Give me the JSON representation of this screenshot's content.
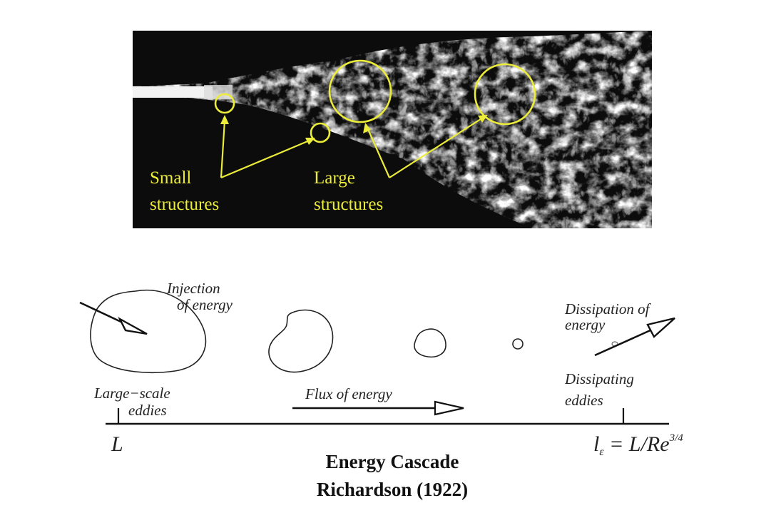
{
  "photo": {
    "small_label": [
      "Small",
      "structures"
    ],
    "large_label": [
      "Large",
      "structures"
    ],
    "annotation_color": "#ecec3a"
  },
  "diagram": {
    "injection": [
      "Injection",
      "of energy"
    ],
    "dissipation": [
      "Dissipation of",
      "energy"
    ],
    "large_scale": [
      "Large−scale",
      "eddies"
    ],
    "dissipating": [
      "Dissipating",
      "eddies"
    ],
    "flux": "Flux of energy",
    "axis_left": "L",
    "axis_right_base": "l",
    "axis_right_sub": "ε",
    "axis_right_rest": " = L/Re",
    "axis_right_exp": "3/4"
  },
  "title": {
    "line1": "Energy Cascade",
    "line2": "Richardson (1922)"
  }
}
